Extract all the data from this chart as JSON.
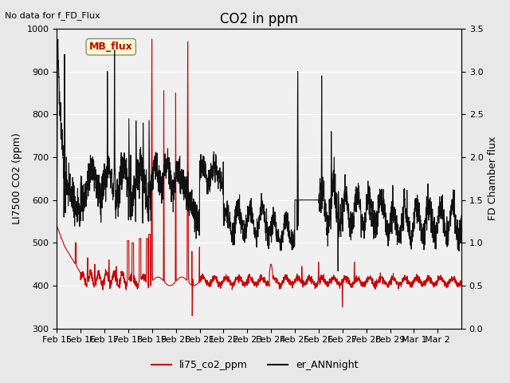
{
  "title": "CO2 in ppm",
  "text_no_data": "No data for f_FD_Flux",
  "ylabel_left": "LI7500 CO2 (ppm)",
  "ylabel_right": "FD Chamber flux",
  "legend_labels": [
    "li75_co2_ppm",
    "er_ANNnight"
  ],
  "ylim_left": [
    300,
    1000
  ],
  "ylim_right": [
    0.0,
    3.5
  ],
  "bg_color": "#e8e8e8",
  "plot_bg_color": "#f0f0f0",
  "line_color_red": "#cc0000",
  "line_color_black": "#111111",
  "mb_flux_box_color": "#ffffcc",
  "mb_flux_text_color": "#cc0000",
  "grid_color": "#ffffff",
  "title_fontsize": 12,
  "label_fontsize": 9,
  "tick_fontsize": 8
}
